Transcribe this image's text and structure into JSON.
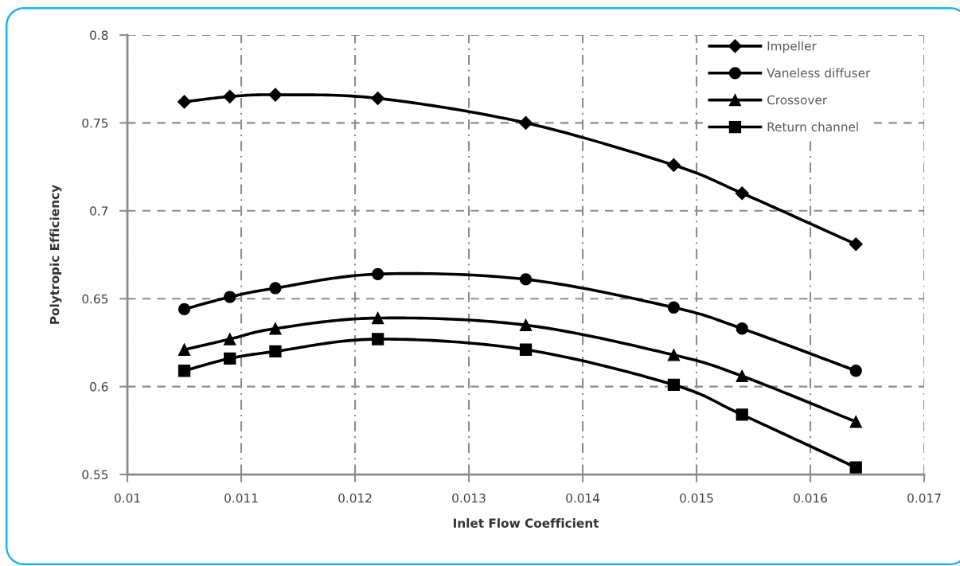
{
  "chart_data": {
    "type": "line",
    "xlabel": "Inlet Flow Coefficient",
    "ylabel": "Polytropic Efficiency",
    "x": [
      0.0105,
      0.0109,
      0.0113,
      0.0122,
      0.0135,
      0.0148,
      0.0154,
      0.0164
    ],
    "series": [
      {
        "name": "Impeller",
        "color": "#000000",
        "marker": "diamond",
        "values": [
          0.762,
          0.765,
          0.766,
          0.764,
          0.75,
          0.726,
          0.71,
          0.681
        ]
      },
      {
        "name": "Vaneless diffuser",
        "color": "#000000",
        "marker": "circle",
        "values": [
          0.644,
          0.651,
          0.656,
          0.664,
          0.661,
          0.645,
          0.633,
          0.609
        ]
      },
      {
        "name": "Crossover",
        "color": "#000000",
        "marker": "triangle",
        "values": [
          0.621,
          0.627,
          0.633,
          0.639,
          0.635,
          0.618,
          0.606,
          0.58
        ]
      },
      {
        "name": "Return channel",
        "color": "#000000",
        "marker": "square",
        "values": [
          0.609,
          0.616,
          0.62,
          0.627,
          0.621,
          0.601,
          0.584,
          0.554
        ]
      }
    ],
    "xlim": [
      0.01,
      0.017
    ],
    "xticks": [
      0.01,
      0.011,
      0.012,
      0.013,
      0.014,
      0.015,
      0.016,
      0.017
    ],
    "ylim": [
      0.55,
      0.8
    ],
    "yticks": [
      0.55,
      0.6,
      0.65,
      0.7,
      0.75,
      0.8
    ],
    "grid": true,
    "legend": "top right",
    "line_style": "solid"
  }
}
